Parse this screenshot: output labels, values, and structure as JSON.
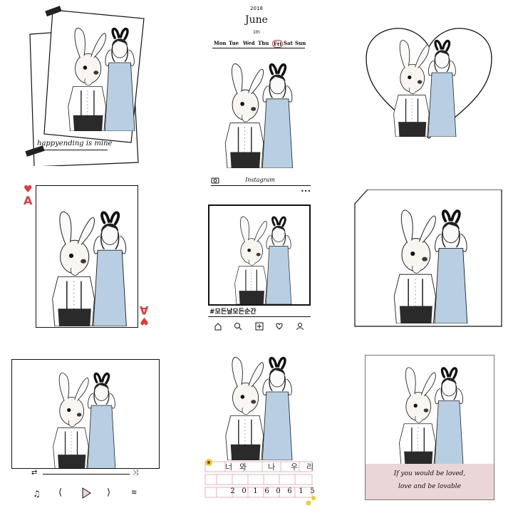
{
  "collage": {
    "tile1": {
      "caption": "happyending is mine"
    },
    "tile2": {
      "year": "2018",
      "month": "June",
      "day": "1th",
      "weekdays": [
        "Mon",
        "Tue",
        "Wed",
        "Thu",
        "Fri",
        "Sat",
        "Sun"
      ],
      "highlighted_day": "Fri"
    },
    "tile4": {
      "card_rank": "A",
      "card_suit": "♥"
    },
    "tile5": {
      "brand": "Instagram",
      "menu": "•••",
      "hashtag": "#모든날모든순간"
    },
    "tile9": {
      "quote_line1": "If you would be loved,",
      "quote_line2": "love and be lovable"
    },
    "tile8": {
      "words": [
        "너",
        "와",
        "나",
        "우",
        "리"
      ],
      "digits": [
        "2",
        "0",
        "1",
        "6",
        "0",
        "6",
        "1",
        "5"
      ]
    },
    "colors": {
      "ink": "#111111",
      "dress": "#b8cfe3",
      "heart_red": "#e23a3a",
      "pink_panel": "#ead6d6",
      "grid_pink": "#e9a0a5",
      "flower": "#f2cc22"
    }
  }
}
